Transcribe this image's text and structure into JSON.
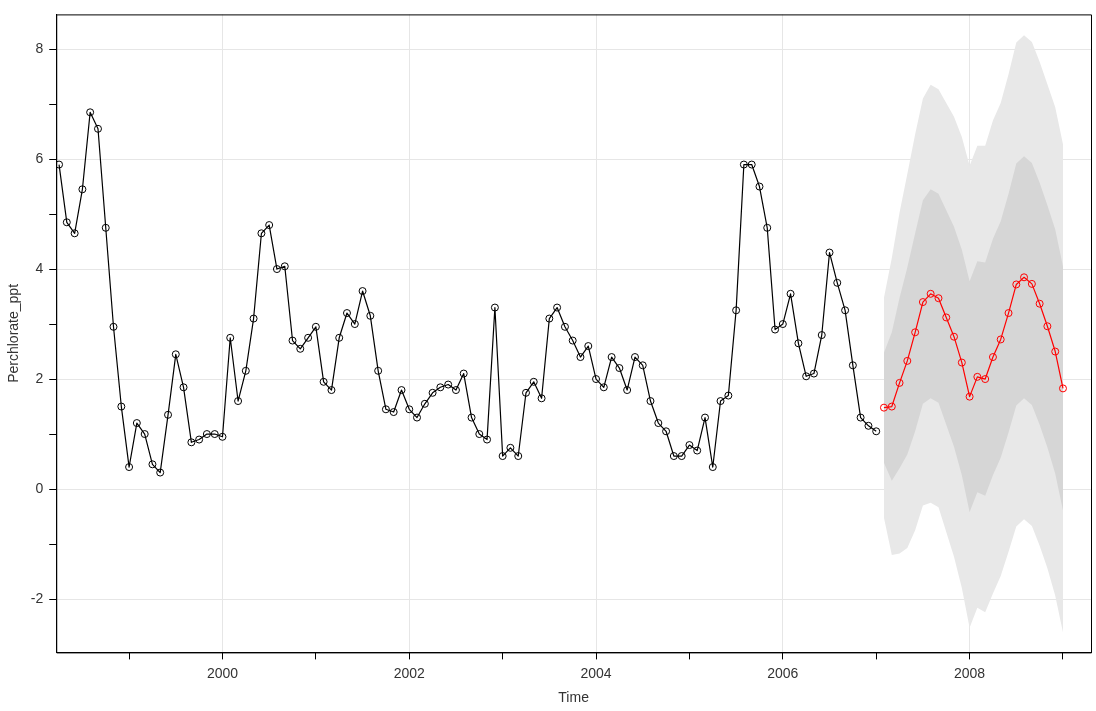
{
  "chart_data": {
    "type": "line",
    "xlabel": "Time",
    "ylabel": "Perchlorate_ppt",
    "xlim": [
      1998.22,
      2009.3
    ],
    "ylim": [
      -2.97,
      8.63
    ],
    "xticks": [
      {
        "value": 1999,
        "label": null
      },
      2000,
      {
        "value": 2001,
        "label": null
      },
      2002,
      {
        "value": 2003,
        "label": null
      },
      2004,
      {
        "value": 2005,
        "label": null
      },
      2006,
      {
        "value": 2007,
        "label": null
      },
      2008,
      {
        "value": 2009,
        "label": null
      }
    ],
    "yticks": [
      -2,
      {
        "value": -1,
        "label": null
      },
      0,
      {
        "value": 1,
        "label": null
      },
      2,
      {
        "value": 3,
        "label": null
      },
      4,
      {
        "value": 5,
        "label": null
      },
      6,
      {
        "value": 7,
        "label": null
      },
      8
    ],
    "grid": true,
    "legend": false,
    "marker": "circle",
    "line_style": "solid",
    "series": [
      {
        "color": "#000000",
        "x": [
          1998.25,
          1998.333,
          1998.417,
          1998.5,
          1998.583,
          1998.667,
          1998.75,
          1998.833,
          1998.917,
          1999.0,
          1999.083,
          1999.167,
          1999.25,
          1999.333,
          1999.417,
          1999.5,
          1999.583,
          1999.667,
          1999.75,
          1999.833,
          1999.917,
          2000.0,
          2000.083,
          2000.167,
          2000.25,
          2000.333,
          2000.417,
          2000.5,
          2000.583,
          2000.667,
          2000.75,
          2000.833,
          2000.917,
          2001.0,
          2001.083,
          2001.167,
          2001.25,
          2001.333,
          2001.417,
          2001.5,
          2001.583,
          2001.667,
          2001.75,
          2001.833,
          2001.917,
          2002.0,
          2002.083,
          2002.167,
          2002.25,
          2002.333,
          2002.417,
          2002.5,
          2002.583,
          2002.667,
          2002.75,
          2002.833,
          2002.917,
          2003.0,
          2003.083,
          2003.167,
          2003.25,
          2003.333,
          2003.417,
          2003.5,
          2003.583,
          2003.667,
          2003.75,
          2003.833,
          2003.917,
          2004.0,
          2004.083,
          2004.167,
          2004.25,
          2004.333,
          2004.417,
          2004.5,
          2004.583,
          2004.667,
          2004.75,
          2004.833,
          2004.917,
          2005.0,
          2005.083,
          2005.167,
          2005.25,
          2005.333,
          2005.417,
          2005.5,
          2005.583,
          2005.667,
          2005.75,
          2005.833,
          2005.917,
          2006.0,
          2006.083,
          2006.167,
          2006.25,
          2006.333,
          2006.417,
          2006.5,
          2006.583,
          2006.667,
          2006.75,
          2006.833,
          2006.917,
          2007.0
        ],
        "values": [
          5.9,
          4.85,
          4.65,
          5.45,
          6.85,
          6.55,
          4.75,
          2.95,
          1.5,
          0.4,
          1.2,
          1.0,
          0.45,
          0.3,
          1.35,
          2.45,
          1.85,
          0.85,
          0.9,
          1.0,
          1.0,
          0.95,
          2.75,
          1.6,
          2.15,
          3.1,
          4.65,
          4.8,
          4.0,
          4.05,
          2.7,
          2.55,
          2.75,
          2.95,
          1.95,
          1.8,
          2.75,
          3.2,
          3.0,
          3.6,
          3.15,
          2.15,
          1.45,
          1.4,
          1.8,
          1.45,
          1.3,
          1.55,
          1.75,
          1.85,
          1.9,
          1.8,
          2.1,
          1.3,
          1.0,
          0.9,
          3.3,
          0.6,
          0.75,
          0.6,
          1.75,
          1.95,
          1.65,
          3.1,
          3.3,
          2.95,
          2.7,
          2.4,
          2.6,
          2.0,
          1.85,
          2.4,
          2.2,
          1.8,
          2.4,
          2.25,
          1.6,
          1.2,
          1.05,
          0.6,
          0.6,
          0.8,
          0.7,
          1.3,
          0.4,
          1.6,
          1.7,
          3.25,
          5.9,
          5.9,
          5.5,
          4.75,
          2.9,
          3.0,
          3.55,
          2.65,
          2.05,
          2.1,
          2.8,
          4.3,
          3.75,
          3.25,
          2.25,
          1.3,
          1.15,
          1.05
        ]
      },
      {
        "color": "#ff0000",
        "x": [
          2007.083,
          2007.167,
          2007.25,
          2007.333,
          2007.417,
          2007.5,
          2007.583,
          2007.667,
          2007.75,
          2007.833,
          2007.917,
          2008.0,
          2008.083,
          2008.167,
          2008.25,
          2008.333,
          2008.417,
          2008.5,
          2008.583,
          2008.667,
          2008.75,
          2008.833,
          2008.917,
          2009.0
        ],
        "values": [
          1.48,
          1.5,
          1.93,
          2.33,
          2.85,
          3.4,
          3.55,
          3.47,
          3.12,
          2.77,
          2.3,
          1.68,
          2.04,
          2.0,
          2.4,
          2.72,
          3.2,
          3.72,
          3.85,
          3.73,
          3.37,
          2.96,
          2.5,
          1.83
        ],
        "lower": [
          0.48,
          0.15,
          0.38,
          0.63,
          1.05,
          1.55,
          1.65,
          1.57,
          1.17,
          0.77,
          0.25,
          -0.42,
          -0.06,
          -0.12,
          0.25,
          0.57,
          1.03,
          1.52,
          1.65,
          1.53,
          1.17,
          0.76,
          0.28,
          -0.39
        ],
        "upper": [
          2.48,
          2.85,
          3.48,
          4.03,
          4.65,
          5.25,
          5.45,
          5.37,
          5.07,
          4.77,
          4.35,
          3.78,
          4.14,
          4.12,
          4.55,
          4.87,
          5.37,
          5.92,
          6.05,
          5.93,
          5.57,
          5.16,
          4.72,
          4.05
        ]
      },
      {
        "color": "#e8e8e8",
        "x": [
          2007.083,
          2007.167,
          2007.25,
          2007.333,
          2007.417,
          2007.5,
          2007.583,
          2007.667,
          2007.75,
          2007.833,
          2007.917,
          2008.0,
          2008.083,
          2008.167,
          2008.25,
          2008.333,
          2008.417,
          2008.5,
          2008.583,
          2008.667,
          2008.75,
          2008.833,
          2008.917,
          2009.0
        ],
        "values": [
          null,
          null,
          null,
          null,
          null,
          null,
          null,
          null,
          null,
          null,
          null,
          null,
          null,
          null,
          null,
          null,
          null,
          null,
          null,
          null,
          null,
          null,
          null,
          null
        ],
        "lower": [
          -0.52,
          -1.2,
          -1.17,
          -1.07,
          -0.75,
          -0.3,
          -0.25,
          -0.33,
          -0.78,
          -1.23,
          -1.8,
          -2.52,
          -2.16,
          -2.24,
          -1.9,
          -1.58,
          -1.14,
          -0.68,
          -0.55,
          -0.67,
          -1.03,
          -1.44,
          -1.94,
          -2.61
        ],
        "upper": [
          3.48,
          4.2,
          5.03,
          5.73,
          6.45,
          7.1,
          7.35,
          7.27,
          7.02,
          6.77,
          6.4,
          5.88,
          6.24,
          6.24,
          6.7,
          7.02,
          7.54,
          8.12,
          8.25,
          8.13,
          7.77,
          7.36,
          6.94,
          6.27
        ]
      }
    ]
  }
}
